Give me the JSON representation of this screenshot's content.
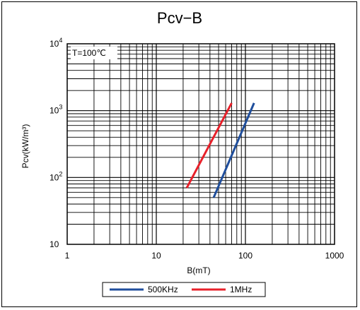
{
  "chart_data": {
    "type": "line",
    "title": "Pcv−B",
    "xlabel": "B(mT)",
    "ylabel": "Pcv(kW/m³)",
    "x_scale": "log",
    "y_scale": "log",
    "xlim": [
      1,
      1000
    ],
    "ylim": [
      10,
      10000
    ],
    "x_ticks": [
      {
        "value": 1,
        "label": "1"
      },
      {
        "value": 10,
        "label": "10"
      },
      {
        "value": 100,
        "label": "100"
      },
      {
        "value": 1000,
        "label": "1000"
      }
    ],
    "y_ticks": [
      {
        "value": 10,
        "base": "10",
        "exp": ""
      },
      {
        "value": 100,
        "base": "10",
        "exp": "2"
      },
      {
        "value": 1000,
        "base": "10",
        "exp": "3"
      },
      {
        "value": 10000,
        "base": "10",
        "exp": "4"
      }
    ],
    "annotation": "T=100℃",
    "grid": true,
    "legend_position": "bottom",
    "series": [
      {
        "name": "500KHz",
        "color": "#1f4e9c",
        "points": [
          [
            44,
            50
          ],
          [
            125,
            1300
          ]
        ]
      },
      {
        "name": "1MHz",
        "color": "#e8202a",
        "points": [
          [
            22,
            70
          ],
          [
            70,
            1300
          ]
        ]
      }
    ]
  }
}
